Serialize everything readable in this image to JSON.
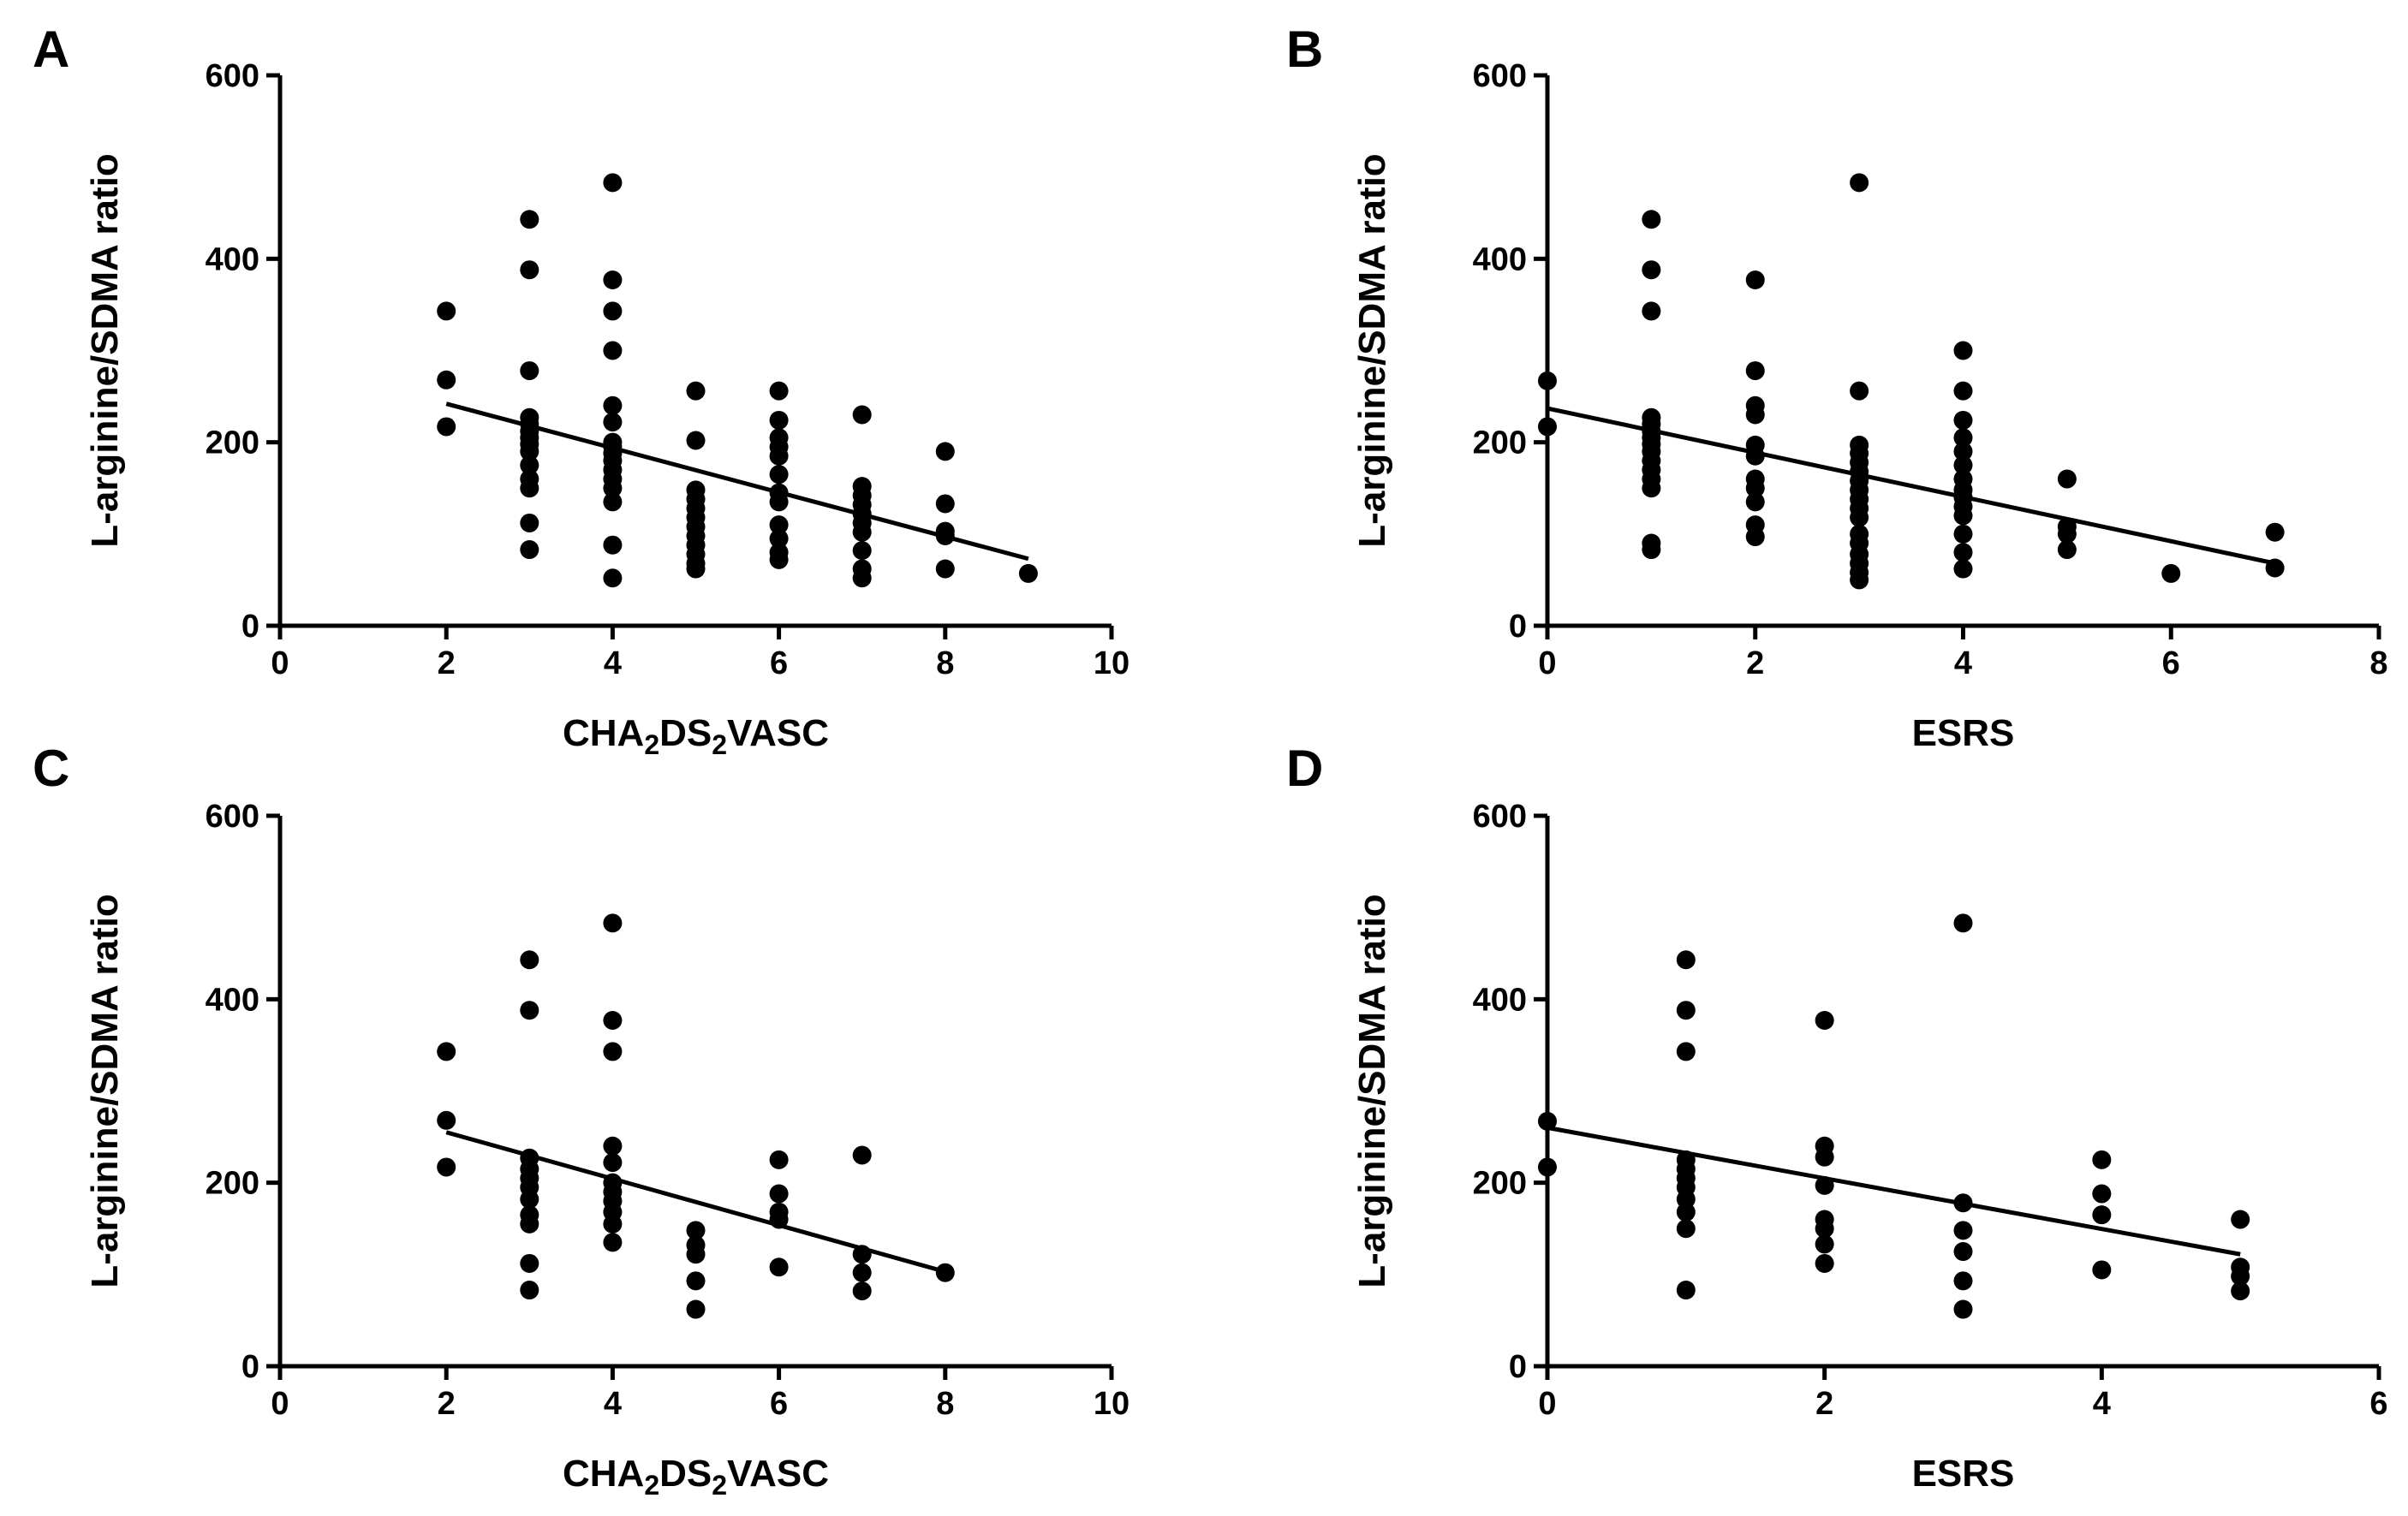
{
  "chart_data": [
    {
      "type": "scatter",
      "panel": "A",
      "xlabel": "CHA",
      "xlabel_parts": [
        "CHA",
        "2",
        "DS",
        "2",
        "VASC"
      ],
      "ylabel": "L-arginine/SDMA ratio",
      "xlim": [
        0,
        10
      ],
      "ylim": [
        0,
        600
      ],
      "xticks": [
        "0",
        "2",
        "4",
        "6",
        "8",
        "10"
      ],
      "yticks": [
        "0",
        "200",
        "400",
        "600"
      ],
      "points": [
        [
          2,
          343
        ],
        [
          2,
          268
        ],
        [
          2,
          217
        ],
        [
          3,
          443
        ],
        [
          3,
          388
        ],
        [
          3,
          278
        ],
        [
          3,
          227
        ],
        [
          3,
          220
        ],
        [
          3,
          212
        ],
        [
          3,
          205
        ],
        [
          3,
          198
        ],
        [
          3,
          190
        ],
        [
          3,
          175
        ],
        [
          3,
          160
        ],
        [
          3,
          150
        ],
        [
          3,
          112
        ],
        [
          3,
          83
        ],
        [
          4,
          483
        ],
        [
          4,
          377
        ],
        [
          4,
          343
        ],
        [
          4,
          300
        ],
        [
          4,
          240
        ],
        [
          4,
          222
        ],
        [
          4,
          200
        ],
        [
          4,
          195
        ],
        [
          4,
          188
        ],
        [
          4,
          180
        ],
        [
          4,
          170
        ],
        [
          4,
          160
        ],
        [
          4,
          150
        ],
        [
          4,
          135
        ],
        [
          4,
          88
        ],
        [
          4,
          52
        ],
        [
          5,
          256
        ],
        [
          5,
          202
        ],
        [
          5,
          148
        ],
        [
          5,
          138
        ],
        [
          5,
          128
        ],
        [
          5,
          118
        ],
        [
          5,
          108
        ],
        [
          5,
          98
        ],
        [
          5,
          88
        ],
        [
          5,
          78
        ],
        [
          5,
          68
        ],
        [
          5,
          62
        ],
        [
          6,
          256
        ],
        [
          6,
          224
        ],
        [
          6,
          205
        ],
        [
          6,
          195
        ],
        [
          6,
          185
        ],
        [
          6,
          165
        ],
        [
          6,
          145
        ],
        [
          6,
          135
        ],
        [
          6,
          110
        ],
        [
          6,
          95
        ],
        [
          6,
          80
        ],
        [
          6,
          72
        ],
        [
          7,
          230
        ],
        [
          7,
          152
        ],
        [
          7,
          142
        ],
        [
          7,
          132
        ],
        [
          7,
          122
        ],
        [
          7,
          112
        ],
        [
          7,
          102
        ],
        [
          7,
          82
        ],
        [
          7,
          62
        ],
        [
          7,
          52
        ],
        [
          8,
          190
        ],
        [
          8,
          133
        ],
        [
          8,
          103
        ],
        [
          8,
          98
        ],
        [
          8,
          62
        ],
        [
          9,
          57
        ]
      ],
      "fit": {
        "x": [
          2,
          9
        ],
        "y": [
          242,
          73
        ]
      }
    },
    {
      "type": "scatter",
      "panel": "B",
      "xlabel": "ESRS",
      "ylabel": "L-arginine/SDMA ratio",
      "xlim": [
        0,
        8
      ],
      "ylim": [
        0,
        600
      ],
      "xticks": [
        "0",
        "2",
        "4",
        "6",
        "8"
      ],
      "yticks": [
        "0",
        "200",
        "400",
        "600"
      ],
      "points": [
        [
          0,
          267
        ],
        [
          0,
          217
        ],
        [
          1,
          443
        ],
        [
          1,
          388
        ],
        [
          1,
          343
        ],
        [
          1,
          227
        ],
        [
          1,
          220
        ],
        [
          1,
          212
        ],
        [
          1,
          205
        ],
        [
          1,
          198
        ],
        [
          1,
          190
        ],
        [
          1,
          180
        ],
        [
          1,
          170
        ],
        [
          1,
          160
        ],
        [
          1,
          150
        ],
        [
          1,
          90
        ],
        [
          1,
          83
        ],
        [
          2,
          377
        ],
        [
          2,
          278
        ],
        [
          2,
          240
        ],
        [
          2,
          230
        ],
        [
          2,
          197
        ],
        [
          2,
          185
        ],
        [
          2,
          160
        ],
        [
          2,
          150
        ],
        [
          2,
          135
        ],
        [
          2,
          110
        ],
        [
          2,
          97
        ],
        [
          3,
          483
        ],
        [
          3,
          256
        ],
        [
          3,
          197
        ],
        [
          3,
          188
        ],
        [
          3,
          178
        ],
        [
          3,
          168
        ],
        [
          3,
          158
        ],
        [
          3,
          148
        ],
        [
          3,
          138
        ],
        [
          3,
          128
        ],
        [
          3,
          118
        ],
        [
          3,
          100
        ],
        [
          3,
          90
        ],
        [
          3,
          78
        ],
        [
          3,
          68
        ],
        [
          3,
          58
        ],
        [
          3,
          50
        ],
        [
          4,
          300
        ],
        [
          4,
          256
        ],
        [
          4,
          224
        ],
        [
          4,
          205
        ],
        [
          4,
          190
        ],
        [
          4,
          175
        ],
        [
          4,
          160
        ],
        [
          4,
          148
        ],
        [
          4,
          140
        ],
        [
          4,
          130
        ],
        [
          4,
          120
        ],
        [
          4,
          100
        ],
        [
          4,
          80
        ],
        [
          4,
          62
        ],
        [
          5,
          160
        ],
        [
          5,
          108
        ],
        [
          5,
          100
        ],
        [
          5,
          83
        ],
        [
          6,
          57
        ],
        [
          7,
          102
        ],
        [
          7,
          63
        ]
      ],
      "fit": {
        "x": [
          0,
          7
        ],
        "y": [
          237,
          68
        ]
      }
    },
    {
      "type": "scatter",
      "panel": "C",
      "xlabel": "CHA",
      "xlabel_parts": [
        "CHA",
        "2",
        "DS",
        "2",
        "VASC"
      ],
      "ylabel": "L-arginine/SDMA ratio",
      "xlim": [
        0,
        10
      ],
      "ylim": [
        0,
        600
      ],
      "xticks": [
        "0",
        "2",
        "4",
        "6",
        "8",
        "10"
      ],
      "yticks": [
        "0",
        "200",
        "400",
        "600"
      ],
      "points": [
        [
          2,
          343
        ],
        [
          2,
          268
        ],
        [
          2,
          217
        ],
        [
          3,
          443
        ],
        [
          3,
          388
        ],
        [
          3,
          227
        ],
        [
          3,
          215
        ],
        [
          3,
          205
        ],
        [
          3,
          195
        ],
        [
          3,
          182
        ],
        [
          3,
          165
        ],
        [
          3,
          155
        ],
        [
          3,
          112
        ],
        [
          3,
          83
        ],
        [
          4,
          483
        ],
        [
          4,
          377
        ],
        [
          4,
          343
        ],
        [
          4,
          240
        ],
        [
          4,
          222
        ],
        [
          4,
          200
        ],
        [
          4,
          190
        ],
        [
          4,
          180
        ],
        [
          4,
          168
        ],
        [
          4,
          155
        ],
        [
          4,
          135
        ],
        [
          5,
          148
        ],
        [
          5,
          132
        ],
        [
          5,
          122
        ],
        [
          5,
          93
        ],
        [
          5,
          62
        ],
        [
          6,
          225
        ],
        [
          6,
          188
        ],
        [
          6,
          168
        ],
        [
          6,
          160
        ],
        [
          6,
          108
        ],
        [
          7,
          230
        ],
        [
          7,
          122
        ],
        [
          7,
          102
        ],
        [
          7,
          82
        ],
        [
          8,
          102
        ]
      ],
      "fit": {
        "x": [
          2,
          8
        ],
        "y": [
          255,
          103
        ]
      }
    },
    {
      "type": "scatter",
      "panel": "D",
      "xlabel": "ESRS",
      "ylabel": "L-arginine/SDMA ratio",
      "xlim": [
        0,
        6
      ],
      "ylim": [
        0,
        600
      ],
      "xticks": [
        "0",
        "2",
        "4",
        "6"
      ],
      "yticks": [
        "0",
        "200",
        "400",
        "600"
      ],
      "points": [
        [
          0,
          267
        ],
        [
          0,
          217
        ],
        [
          1,
          443
        ],
        [
          1,
          388
        ],
        [
          1,
          343
        ],
        [
          1,
          225
        ],
        [
          1,
          215
        ],
        [
          1,
          205
        ],
        [
          1,
          195
        ],
        [
          1,
          182
        ],
        [
          1,
          168
        ],
        [
          1,
          150
        ],
        [
          1,
          83
        ],
        [
          2,
          377
        ],
        [
          2,
          240
        ],
        [
          2,
          228
        ],
        [
          2,
          197
        ],
        [
          2,
          160
        ],
        [
          2,
          150
        ],
        [
          2,
          133
        ],
        [
          2,
          112
        ],
        [
          3,
          483
        ],
        [
          3,
          178
        ],
        [
          3,
          148
        ],
        [
          3,
          125
        ],
        [
          3,
          93
        ],
        [
          3,
          62
        ],
        [
          4,
          225
        ],
        [
          4,
          188
        ],
        [
          4,
          165
        ],
        [
          4,
          105
        ],
        [
          5,
          160
        ],
        [
          5,
          108
        ],
        [
          5,
          98
        ],
        [
          5,
          82
        ]
      ],
      "fit": {
        "x": [
          0,
          5
        ],
        "y": [
          260,
          122
        ]
      }
    }
  ]
}
